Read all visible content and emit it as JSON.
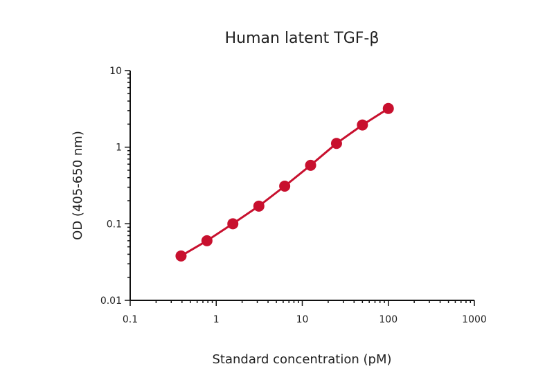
{
  "chart_data": {
    "type": "line",
    "title": "Human latent TGF-β",
    "xlabel": "Standard concentration (pM)",
    "ylabel": "OD (405-650 nm)",
    "xscale": "log",
    "yscale": "log",
    "xlim": [
      0.1,
      1000
    ],
    "ylim": [
      0.01,
      10
    ],
    "x_ticks": [
      0.1,
      1,
      10,
      100,
      1000
    ],
    "x_tick_labels": [
      "0.1",
      "1",
      "10",
      "100",
      "1000"
    ],
    "y_ticks": [
      0.01,
      0.1,
      1,
      10
    ],
    "y_tick_labels": [
      "0.01",
      "0.1",
      "1",
      "10"
    ],
    "grid": false,
    "series": [
      {
        "color": "#c8102e",
        "x": [
          0.39,
          0.78,
          1.56,
          3.13,
          6.25,
          12.5,
          25,
          50,
          100
        ],
        "y": [
          0.038,
          0.06,
          0.1,
          0.17,
          0.31,
          0.58,
          1.12,
          1.95,
          3.2
        ]
      }
    ]
  }
}
